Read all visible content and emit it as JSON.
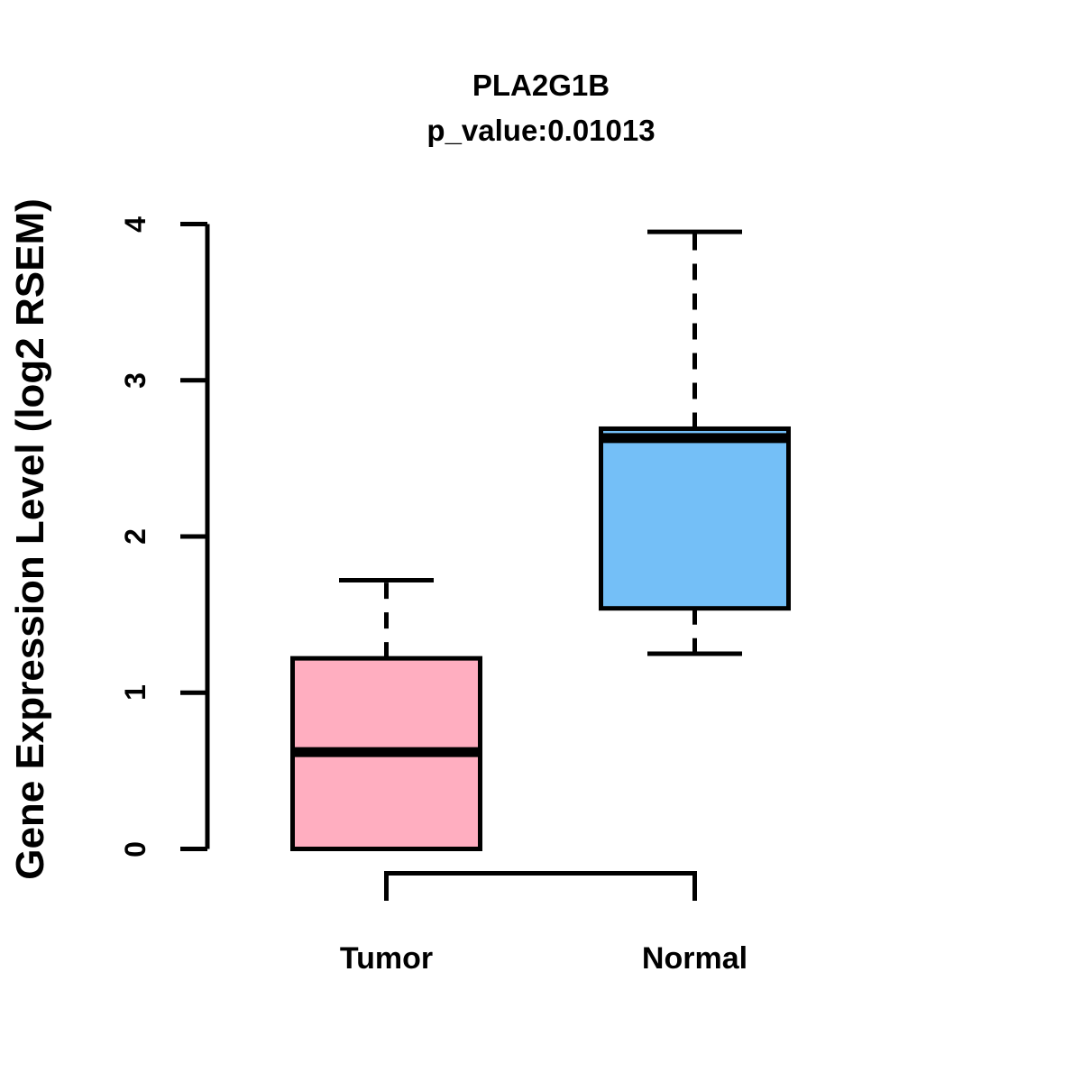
{
  "chart_data": {
    "type": "box",
    "title": "PLA2G1B",
    "subtitle": "p_value:0.01013",
    "gene": "PLA2G1B",
    "p_value": 0.01013,
    "xlabel": "",
    "ylabel": "Gene Expression Level (log2 RSEM)",
    "ylim": [
      0,
      4
    ],
    "yticks": [
      0,
      1,
      2,
      3,
      4
    ],
    "categories": [
      "Tumor",
      "Normal"
    ],
    "series": [
      {
        "name": "Tumor",
        "color": "#FFAEC0",
        "min": 0.0,
        "q1": 0.0,
        "median": 0.62,
        "q3": 1.22,
        "max": 1.72
      },
      {
        "name": "Normal",
        "color": "#74BFF7",
        "min": 1.25,
        "q1": 1.54,
        "median": 2.63,
        "q3": 2.69,
        "max": 3.95
      }
    ],
    "stroke_color": "#000000",
    "background_color": "#FFFFFF",
    "grid": false,
    "legend": "none",
    "layout": {
      "ytick_label_rotation_deg": 90,
      "whisker_style": "dashed",
      "group_bracket_below_axis": true
    }
  }
}
